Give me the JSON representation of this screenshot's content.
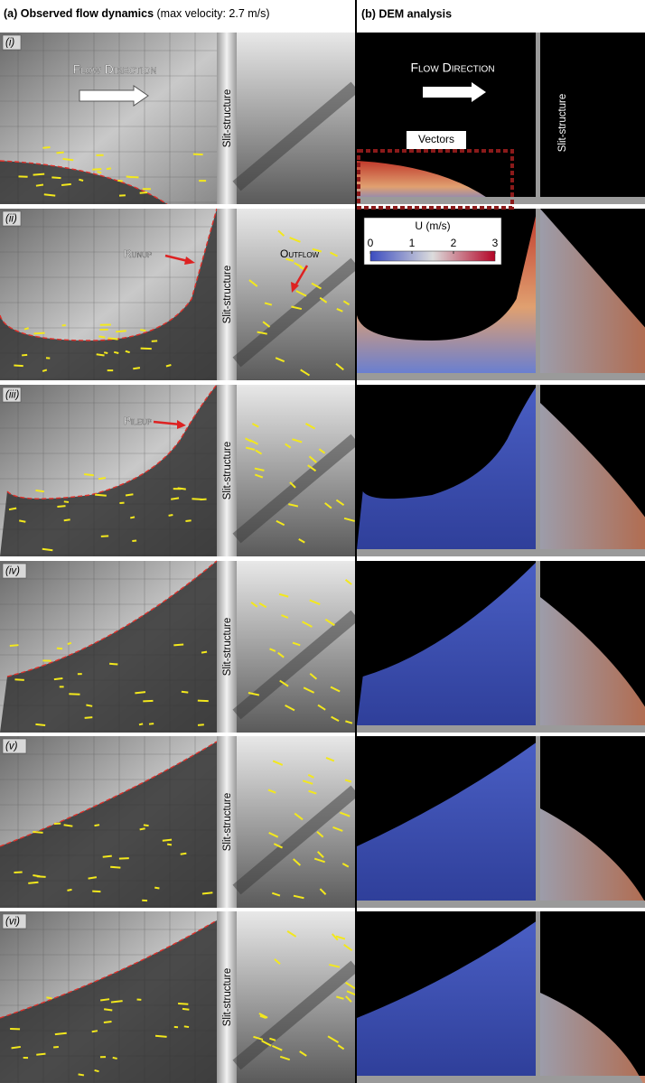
{
  "header": {
    "left_title": "(a) Observed flow dynamics",
    "left_note": "(max velocity: 2.7 m/s)",
    "right_title": "(b) DEM analysis"
  },
  "rows": [
    {
      "label": "(i)",
      "slit_label": "Slit-structure"
    },
    {
      "label": "(ii)",
      "slit_label": "Slit-structure"
    },
    {
      "label": "(iii)",
      "slit_label": "Slit-structure"
    },
    {
      "label": "(iv)",
      "slit_label": "Slit-structure"
    },
    {
      "label": "(v)",
      "slit_label": "Slit-structure"
    },
    {
      "label": "(vi)",
      "slit_label": "Slit-structure"
    }
  ],
  "annotations": {
    "flow_direction_left": "Flow Direction",
    "flow_direction_right": "Flow Direction",
    "slit_dem": "Slit-structure",
    "vectors": "Vectors",
    "runup": "Runup",
    "outflow": "Outflow",
    "pileup": "Pileup"
  },
  "colorbar": {
    "label": "U (m/s)",
    "range": [
      0,
      3
    ],
    "ticks": [
      0,
      1,
      2,
      3
    ]
  }
}
